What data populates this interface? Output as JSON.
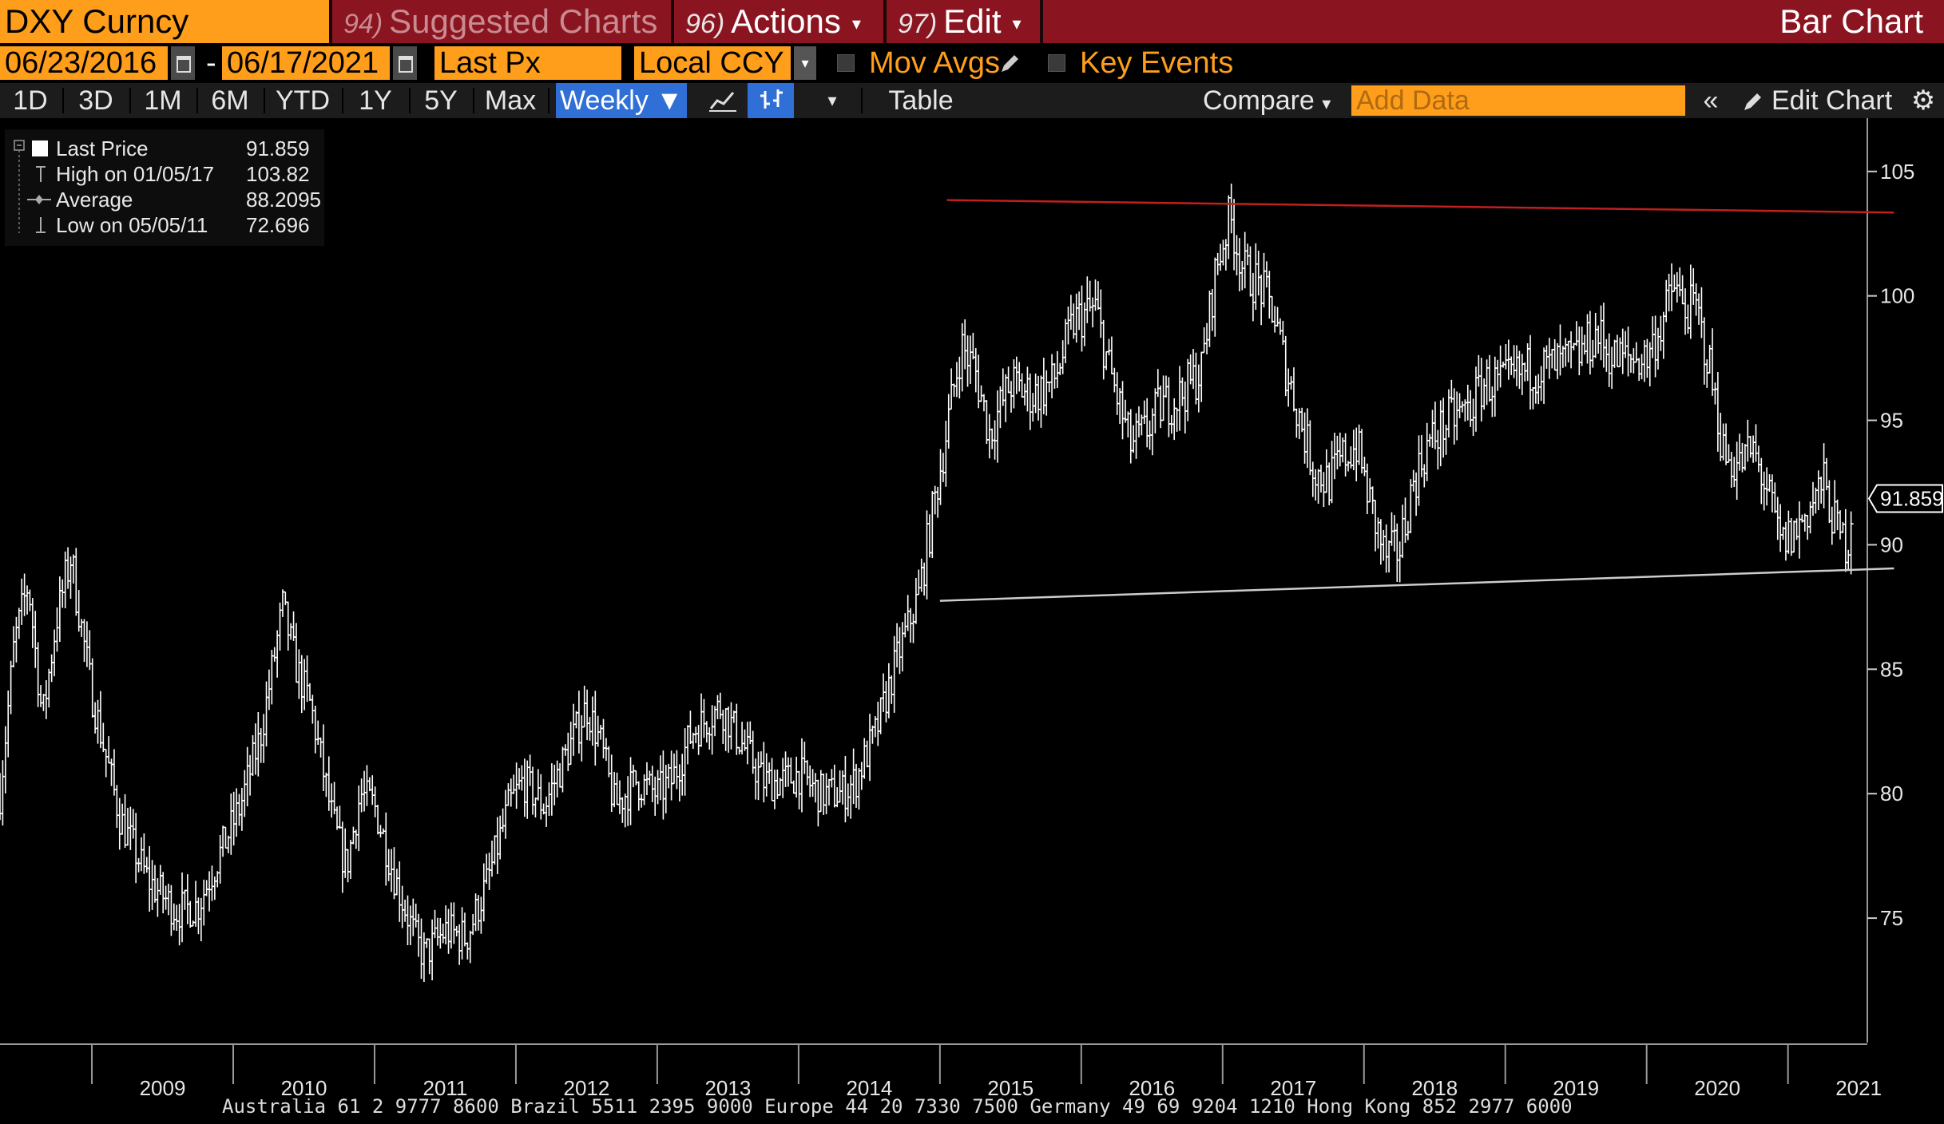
{
  "toolbar": {
    "ticker": "DXY Curncy",
    "menus": [
      {
        "num": "94)",
        "label": "Suggested Charts",
        "dim": true,
        "caret": false
      },
      {
        "num": "96)",
        "label": "Actions",
        "dim": false,
        "caret": true
      },
      {
        "num": "97)",
        "label": "Edit",
        "dim": false,
        "caret": true
      }
    ],
    "chart_kind": "Bar Chart",
    "start_date": "06/23/2016",
    "end_date": "06/17/2021",
    "date_separator": "-",
    "field": "Last Px",
    "currency": "Local CCY",
    "mov_avgs_label": "Mov Avgs",
    "key_events_label": "Key Events",
    "periods": [
      "1D",
      "3D",
      "1M",
      "6M",
      "YTD",
      "1Y",
      "5Y",
      "Max"
    ],
    "frequency": "Weekly",
    "table_label": "Table",
    "compare_label": "Compare",
    "add_data_placeholder": "Add Data",
    "edit_chart_label": "Edit Chart"
  },
  "legend": {
    "rows": [
      {
        "label": "Last Price",
        "value": "91.859",
        "icon": "white-square-icon"
      },
      {
        "label": "High on 01/05/17",
        "value": "103.82",
        "icon": "high-marker-icon"
      },
      {
        "label": "Average",
        "value": "88.2095",
        "icon": "average-marker-icon"
      },
      {
        "label": "Low on 05/05/11",
        "value": "72.696",
        "icon": "low-marker-icon"
      }
    ]
  },
  "chart_data": {
    "type": "bar",
    "series_kind": "weekly OHLC bars",
    "x_tick_labels": [
      "2009",
      "2010",
      "2011",
      "2012",
      "2013",
      "2014",
      "2015",
      "2016",
      "2017",
      "2018",
      "2019",
      "2020",
      "2021"
    ],
    "xlim": [
      2008.35,
      2021.55
    ],
    "y_ticks": [
      75,
      80,
      85,
      90,
      95,
      100,
      105
    ],
    "y_tick_labels": [
      "75",
      "80",
      "85",
      "90",
      "95",
      "100",
      "105"
    ],
    "ylim": [
      70,
      106.5
    ],
    "last_price_label": "91.859",
    "last_price": 91.859,
    "grid": false,
    "price_path": [
      [
        2008.35,
        80
      ],
      [
        2008.45,
        86
      ],
      [
        2008.55,
        88.5
      ],
      [
        2008.65,
        83
      ],
      [
        2008.75,
        87
      ],
      [
        2008.85,
        89.5
      ],
      [
        2009.0,
        84
      ],
      [
        2009.2,
        79
      ],
      [
        2009.4,
        76.5
      ],
      [
        2009.6,
        75.3
      ],
      [
        2009.75,
        75.5
      ],
      [
        2009.9,
        77.5
      ],
      [
        2010.05,
        79.5
      ],
      [
        2010.2,
        82.5
      ],
      [
        2010.35,
        87.5
      ],
      [
        2010.45,
        85
      ],
      [
        2010.55,
        83.5
      ],
      [
        2010.7,
        79
      ],
      [
        2010.8,
        77
      ],
      [
        2010.9,
        80
      ],
      [
        2011.0,
        79.5
      ],
      [
        2011.15,
        76.5
      ],
      [
        2011.3,
        74
      ],
      [
        2011.35,
        73.5
      ],
      [
        2011.5,
        74.5
      ],
      [
        2011.65,
        74.2
      ],
      [
        2011.8,
        76.5
      ],
      [
        2011.95,
        79.5
      ],
      [
        2012.05,
        80.5
      ],
      [
        2012.2,
        79.5
      ],
      [
        2012.35,
        81.5
      ],
      [
        2012.5,
        83.5
      ],
      [
        2012.6,
        82
      ],
      [
        2012.7,
        79.5
      ],
      [
        2012.85,
        80.5
      ],
      [
        2013.0,
        80
      ],
      [
        2013.1,
        80.5
      ],
      [
        2013.25,
        82.5
      ],
      [
        2013.45,
        83.5
      ],
      [
        2013.6,
        82
      ],
      [
        2013.75,
        80.5
      ],
      [
        2013.9,
        80.5
      ],
      [
        2014.0,
        80.8
      ],
      [
        2014.15,
        80
      ],
      [
        2014.3,
        80
      ],
      [
        2014.4,
        80.5
      ],
      [
        2014.55,
        82.5
      ],
      [
        2014.7,
        85.5
      ],
      [
        2014.85,
        88
      ],
      [
        2015.0,
        93
      ],
      [
        2015.15,
        98
      ],
      [
        2015.25,
        97
      ],
      [
        2015.35,
        94.5
      ],
      [
        2015.5,
        96.5
      ],
      [
        2015.65,
        96
      ],
      [
        2015.8,
        96.5
      ],
      [
        2015.95,
        99
      ],
      [
        2016.1,
        99.5
      ],
      [
        2016.2,
        97
      ],
      [
        2016.35,
        94
      ],
      [
        2016.45,
        94.5
      ],
      [
        2016.55,
        95.5
      ],
      [
        2016.7,
        96
      ],
      [
        2016.85,
        97
      ],
      [
        2016.95,
        101
      ],
      [
        2017.05,
        103.2
      ],
      [
        2017.15,
        101
      ],
      [
        2017.25,
        100.5
      ],
      [
        2017.35,
        99.5
      ],
      [
        2017.45,
        97
      ],
      [
        2017.55,
        95
      ],
      [
        2017.65,
        93
      ],
      [
        2017.75,
        92.5
      ],
      [
        2017.85,
        93.5
      ],
      [
        2017.95,
        94
      ],
      [
        2018.05,
        91.5
      ],
      [
        2018.15,
        89.5
      ],
      [
        2018.25,
        89.8
      ],
      [
        2018.35,
        92.5
      ],
      [
        2018.45,
        94
      ],
      [
        2018.6,
        95
      ],
      [
        2018.75,
        95.5
      ],
      [
        2018.85,
        96.5
      ],
      [
        2019.0,
        96.5
      ],
      [
        2019.15,
        97
      ],
      [
        2019.35,
        97.2
      ],
      [
        2019.5,
        97.5
      ],
      [
        2019.65,
        98.5
      ],
      [
        2019.75,
        97.5
      ],
      [
        2019.85,
        97.5
      ],
      [
        2020.0,
        97.5
      ],
      [
        2020.1,
        98.8
      ],
      [
        2020.2,
        100.5
      ],
      [
        2020.25,
        99.5
      ],
      [
        2020.35,
        99.5
      ],
      [
        2020.45,
        97
      ],
      [
        2020.55,
        93.5
      ],
      [
        2020.65,
        93.2
      ],
      [
        2020.75,
        93.8
      ],
      [
        2020.85,
        92.2
      ],
      [
        2020.95,
        90
      ],
      [
        2021.05,
        90.5
      ],
      [
        2021.15,
        91.5
      ],
      [
        2021.25,
        92.5
      ],
      [
        2021.35,
        90.5
      ],
      [
        2021.42,
        90
      ],
      [
        2021.46,
        91.86
      ]
    ],
    "annotations": [
      {
        "type": "trendline",
        "color": "#c0201e",
        "from": [
          2015.05,
          103.85
        ],
        "to": [
          2021.75,
          103.35
        ]
      },
      {
        "type": "trendline",
        "color": "#cccccc",
        "from": [
          2015.0,
          87.75
        ],
        "to": [
          2021.75,
          89.05
        ]
      }
    ]
  },
  "colors": {
    "header_bar": "#8a1521",
    "input_orange": "#ff9e1b",
    "active_blue": "#2f6fd6",
    "price_bars": "#ffffff",
    "resistance_line": "#c0201e",
    "support_line": "#cccccc"
  },
  "footer_text": "Australia 61 2 9777 8600 Brazil 5511 2395 9000 Europe 44 20 7330 7500 Germany 49 69 9204 1210 Hong Kong 852 2977 6000"
}
